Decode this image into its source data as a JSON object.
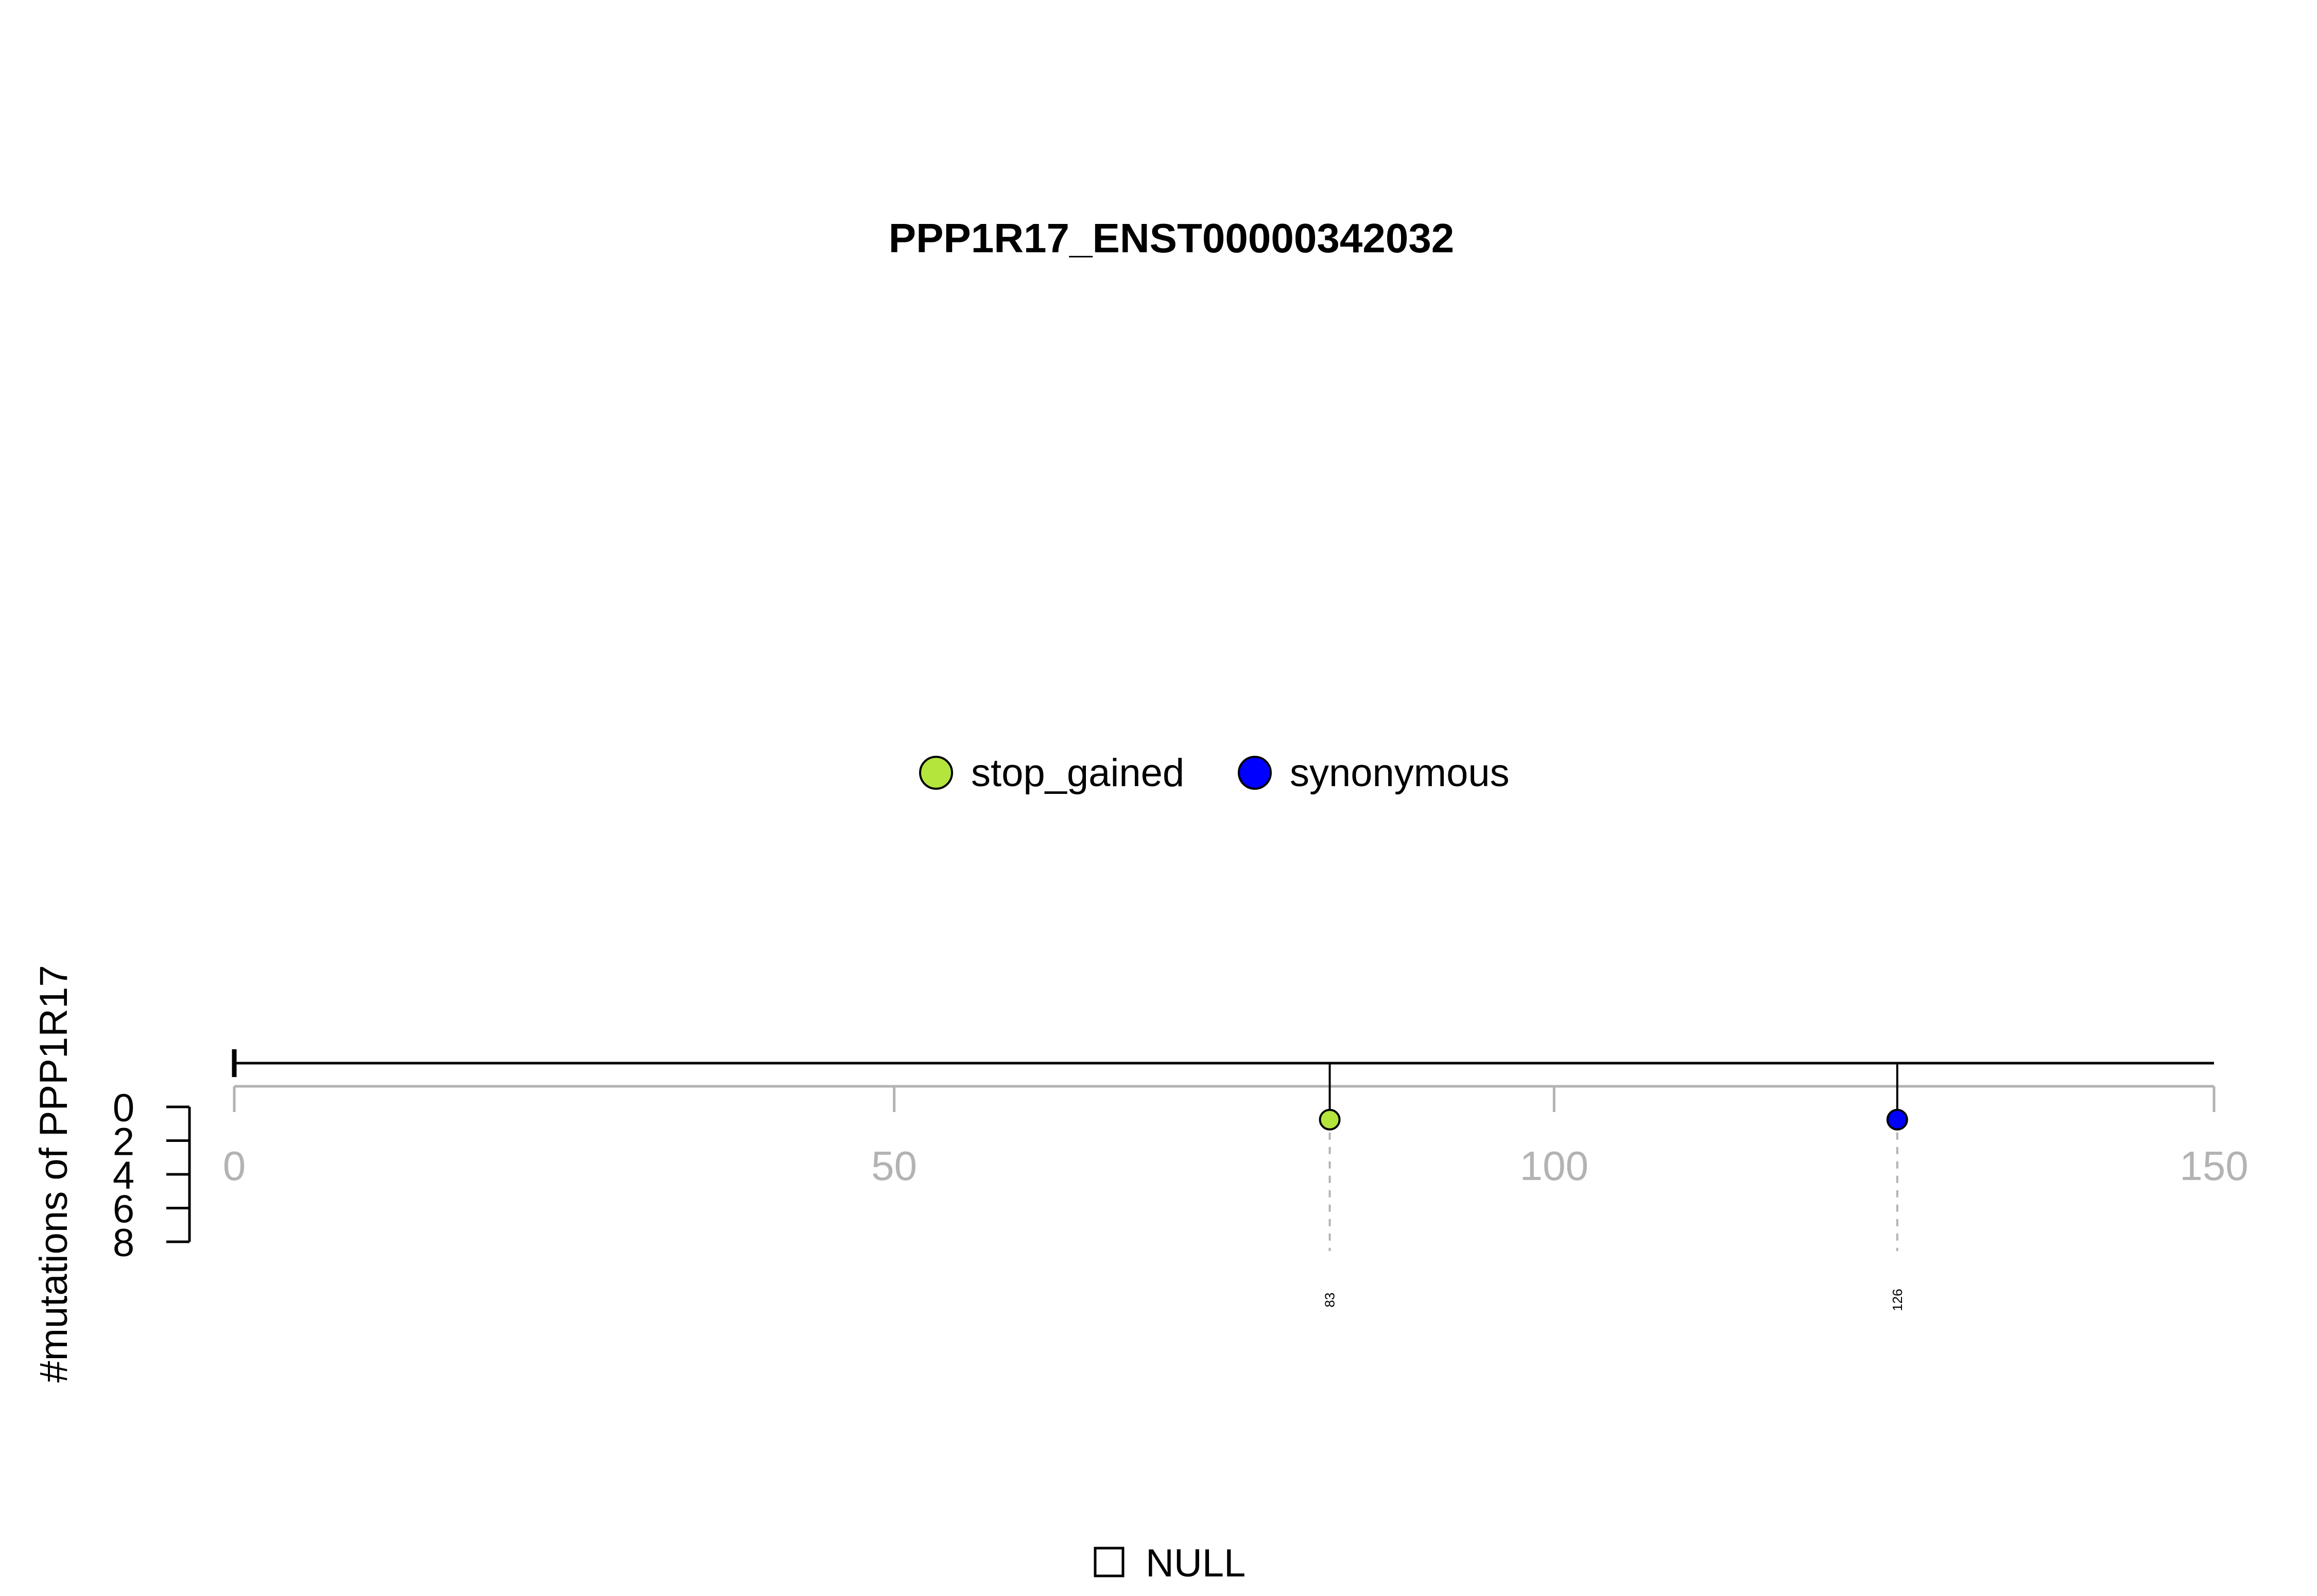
{
  "chart_data": {
    "type": "lollipop",
    "title": "PPP1R17_ENST00000342032",
    "ylabel": "#mutations of PPP1R17",
    "xlim": [
      0,
      150
    ],
    "x_ticks": [
      0,
      50,
      100,
      150
    ],
    "ylim": [
      0,
      8
    ],
    "y_ticks": [
      0,
      2,
      4,
      6,
      8
    ],
    "legend": {
      "placement": "top-center",
      "entries": [
        {
          "name": "stop_gained",
          "color": "#b3e53d"
        },
        {
          "name": "synonymous",
          "color": "#0000ff"
        }
      ]
    },
    "points": [
      {
        "position": 83,
        "count": 1,
        "type": "stop_gained",
        "color": "#b3e53d",
        "label": "83"
      },
      {
        "position": 126,
        "count": 1,
        "type": "synonymous",
        "color": "#0000ff",
        "label": "126"
      }
    ],
    "domain_legend": {
      "label": "NULL",
      "color": "#ffffff"
    }
  }
}
